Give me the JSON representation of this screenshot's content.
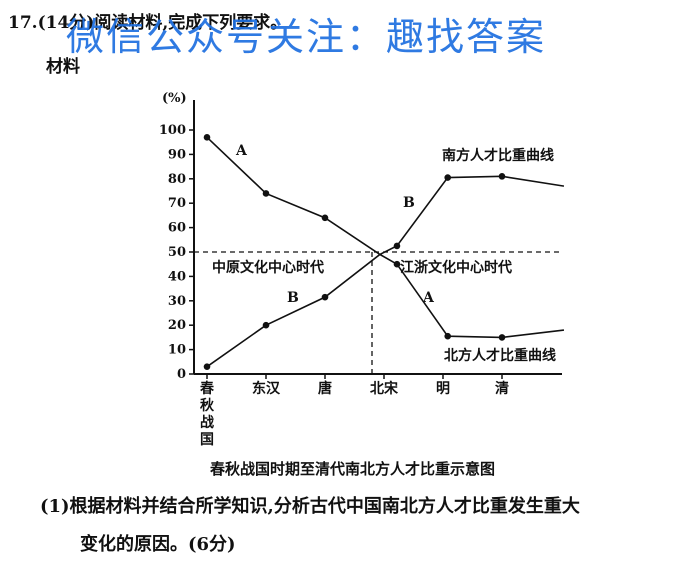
{
  "question": {
    "header": "17.(14分)阅读材料,完成下列要求。",
    "material_label": "材料",
    "caption": "春秋战国时期至清代南北方人才比重示意图",
    "sub_question_line1": "(1)根据材料并结合所学知识,分析古代中国南北方人才比重发生重大",
    "sub_question_line2": "变化的原因。(6分)"
  },
  "watermark": {
    "text": "微信公众号关注：趣找答案",
    "color": "#1e6fe0"
  },
  "chart_data": {
    "type": "line",
    "title": "",
    "ylabel": "(%)",
    "xlabel": "",
    "ylim": [
      0,
      100
    ],
    "yticks": [
      0,
      10,
      20,
      30,
      40,
      50,
      60,
      70,
      80,
      90,
      100
    ],
    "categories": [
      "春秋战国",
      "东汉",
      "唐",
      "北宋",
      "明",
      "清"
    ],
    "series": [
      {
        "name": "北方人才比重曲线",
        "points": [
          [
            0,
            97
          ],
          [
            1,
            74
          ],
          [
            2,
            64
          ],
          [
            2.93,
            49
          ],
          [
            3.22,
            45
          ],
          [
            4.08,
            15.5
          ],
          [
            5,
            15
          ],
          [
            6.05,
            18
          ]
        ]
      },
      {
        "name": "南方人才比重曲线",
        "points": [
          [
            0,
            3
          ],
          [
            1,
            20
          ],
          [
            2,
            31.5
          ],
          [
            2.93,
            49
          ],
          [
            3.22,
            52.5
          ],
          [
            4.08,
            80.5
          ],
          [
            5,
            81
          ],
          [
            6.05,
            77
          ]
        ]
      }
    ],
    "reference_line": 50,
    "segment_labels": [
      "A",
      "B",
      "B",
      "A"
    ],
    "region_labels": [
      "中原文化中心时代",
      "江浙文化中心时代"
    ]
  }
}
